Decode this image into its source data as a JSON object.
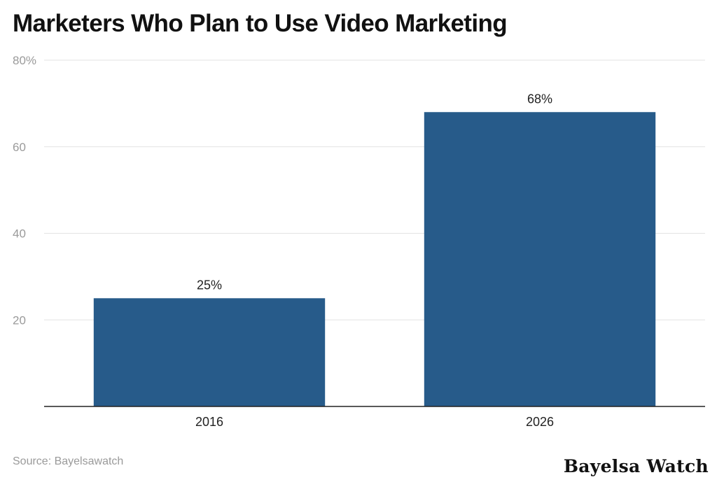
{
  "chart_data": {
    "type": "bar",
    "title": "Marketers Who Plan to Use Video Marketing",
    "categories": [
      "2016",
      "2026"
    ],
    "values": [
      25,
      68
    ],
    "value_labels": [
      "25%",
      "68%"
    ],
    "ylim": [
      0,
      80
    ],
    "yticks": [
      20,
      40,
      60,
      80
    ],
    "ytick_labels": [
      "20",
      "40",
      "60",
      "80%"
    ],
    "xlabel": "",
    "ylabel": "",
    "grid": true,
    "bar_color": "#275b8a"
  },
  "footer": {
    "source": "Source: Bayelsawatch",
    "brand": "Bayelsa Watch"
  }
}
